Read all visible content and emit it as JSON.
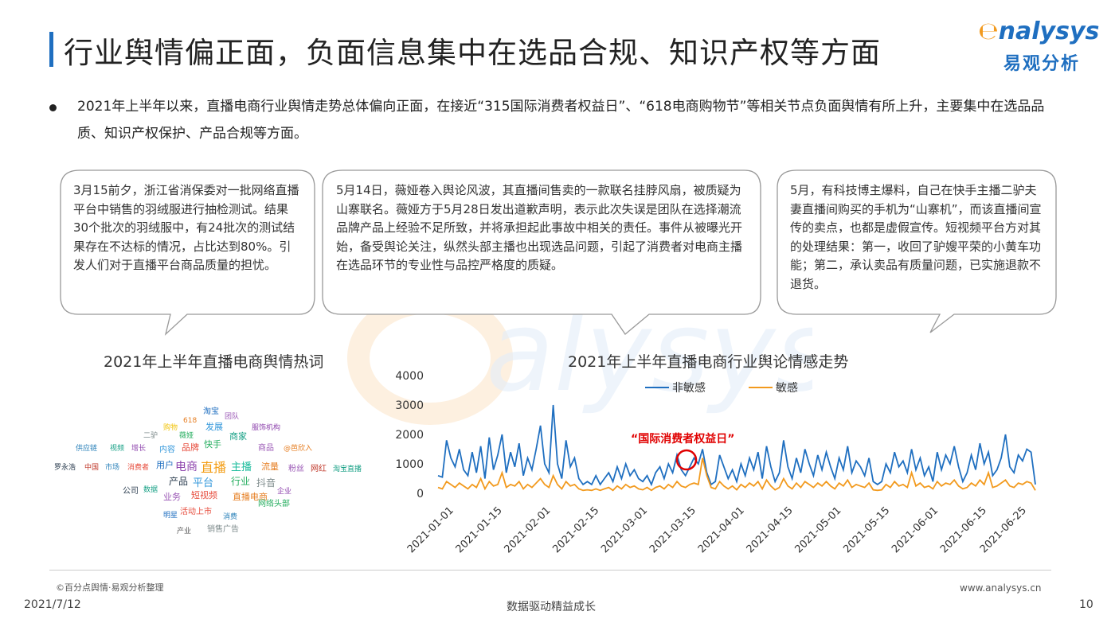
{
  "header": {
    "title": "行业舆情偏正面，负面信息集中在选品合规、知识产权等方面",
    "logo_en": "nalysys",
    "logo_zh": "易观分析"
  },
  "summary": "2021年上半年以来，直播电商行业舆情走势总体偏向正面，在接近“315国际消费者权益日”、“618电商购物节”等相关节点负面舆情有所上升，主要集中在选品品质、知识产权保护、产品合规等方面。",
  "callouts": [
    "3月15前夕，浙江省消保委对一批网络直播平台中销售的羽绒服进行抽检测试。结果30个批次的羽绒服中，有24批次的测试结果存在不达标的情况，占比达到80%。引发人们对于直播平台商品质量的担忧。",
    "5月14日，薇娅卷入舆论风波，其直播间售卖的一款联名挂脖风扇，被质疑为山寨联名。薇娅方于5月28日发出道歉声明，表示此次失误是团队在选择潮流品牌产品上经验不足所致，并将承担起此事故中相关的责任。事件从被曝光开始，备受舆论关注，纵然头部主播也出现选品问题，引起了消费者对电商主播在选品环节的专业性与品控严格度的质疑。",
    "5月，有科技博主爆料，自己在快手主播二驴夫妻直播间购买的手机为“山寨机”，而该直播间宣传的卖点，也都是虚假宣传。短视频平台方对其的处理结果：第一，收回了驴嫂平荣的小黄车功能；第二，承认卖品有质量问题，已实施退款不退货。"
  ],
  "wordcloud": {
    "title": "2021年上半年直播电商舆情热词",
    "words": [
      "淘宝",
      "团队",
      "618",
      "发展",
      "购物",
      "二驴",
      "薇娅",
      "商家",
      "服饰机构",
      "供应链",
      "视频",
      "增长",
      "内容",
      "品牌",
      "快手",
      "商品",
      "@芭欣入",
      "罗永浩",
      "中国",
      "市场",
      "消费者",
      "用户",
      "电商",
      "直播",
      "主播",
      "流量",
      "粉丝",
      "网红",
      "淘宝直播",
      "产品",
      "平台",
      "行业",
      "抖音",
      "公司",
      "数据",
      "业务",
      "短视频",
      "直播电商",
      "企业",
      "网络头部",
      "明星",
      "活动上市",
      "消费",
      "销售广告",
      "产业"
    ]
  },
  "chart_data": {
    "type": "line",
    "title": "2021年上半年直播电商行业舆论情感走势",
    "ylim": [
      0,
      4000
    ],
    "yticks": [
      0,
      1000,
      2000,
      3000,
      4000
    ],
    "xticks": [
      "2021-01-01",
      "2021-01-15",
      "2021-02-01",
      "2021-02-15",
      "2021-03-01",
      "2021-03-15",
      "2021-04-01",
      "2021-04-15",
      "2021-05-01",
      "2021-05-15",
      "2021-06-01",
      "2021-06-15",
      "2021-06-25"
    ],
    "annotation": "“国际消费者权益日”",
    "series": [
      {
        "name": "非敏感",
        "color": "#1f6fc0",
        "values": [
          600,
          550,
          1800,
          1200,
          900,
          1500,
          800,
          600,
          1400,
          700,
          1600,
          500,
          1900,
          800,
          1300,
          2000,
          700,
          1400,
          900,
          1700,
          600,
          1200,
          800,
          1500,
          2300,
          1000,
          700,
          3000,
          1000,
          500,
          1800,
          900,
          1200,
          500,
          300,
          400,
          300,
          600,
          300,
          500,
          700,
          400,
          900,
          500,
          1000,
          600,
          800,
          500,
          400,
          600,
          300,
          700,
          900,
          500,
          1000,
          700,
          1300,
          800,
          600,
          900,
          1200,
          1000,
          1500,
          700,
          300,
          400,
          1300,
          900,
          500,
          800,
          400,
          1000,
          600,
          1200,
          800,
          1400,
          500,
          1600,
          900,
          400,
          700,
          1800,
          900,
          500,
          1200,
          700,
          1500,
          1000,
          600,
          1300,
          800,
          1400,
          900,
          500,
          1200,
          800,
          1600,
          700,
          1100,
          900,
          600,
          1200,
          400,
          300,
          400,
          1000,
          700,
          1400,
          900,
          1100,
          700,
          1500,
          800,
          1200,
          600,
          900,
          400,
          1400,
          800,
          1300,
          1000,
          1600,
          900,
          400,
          700,
          1300,
          800,
          1700,
          1000,
          1400,
          600,
          800,
          1200,
          2000,
          900,
          700,
          1300,
          1100,
          1500,
          1400,
          300
        ]
      },
      {
        "name": "敏感",
        "color": "#f29a1e",
        "values": [
          200,
          150,
          400,
          300,
          200,
          350,
          250,
          150,
          300,
          200,
          500,
          150,
          400,
          250,
          300,
          700,
          200,
          300,
          250,
          400,
          150,
          300,
          200,
          350,
          500,
          300,
          200,
          600,
          300,
          150,
          400,
          250,
          300,
          150,
          100,
          120,
          100,
          150,
          100,
          150,
          200,
          100,
          250,
          150,
          300,
          200,
          250,
          150,
          120,
          200,
          100,
          200,
          250,
          150,
          300,
          200,
          400,
          250,
          200,
          300,
          350,
          300,
          1200,
          600,
          200,
          150,
          400,
          250,
          150,
          250,
          120,
          300,
          200,
          350,
          250,
          400,
          150,
          450,
          250,
          120,
          200,
          500,
          250,
          150,
          350,
          200,
          400,
          300,
          200,
          350,
          250,
          400,
          250,
          150,
          350,
          250,
          450,
          200,
          300,
          250,
          200,
          350,
          120,
          100,
          120,
          300,
          200,
          400,
          250,
          300,
          200,
          700,
          250,
          350,
          200,
          250,
          150,
          400,
          250,
          350,
          300,
          450,
          250,
          150,
          200,
          350,
          250,
          450,
          300,
          700,
          200,
          250,
          350,
          450,
          250,
          200,
          350,
          300,
          400,
          350,
          100
        ]
      }
    ]
  },
  "footer": {
    "source": "©百分点舆情·易观分析整理",
    "date": "2021/7/12",
    "slogan": "数据驱动精益成长",
    "site": "www.analysys.cn",
    "page": "10"
  }
}
